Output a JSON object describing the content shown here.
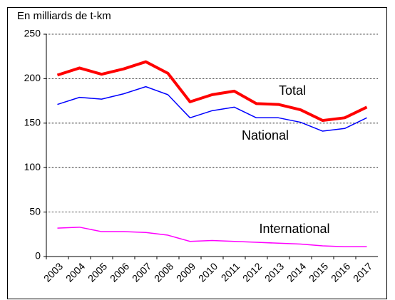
{
  "chart_data": {
    "type": "line",
    "y_axis_label": "En milliards de t-km",
    "categories": [
      "2003",
      "2004",
      "2005",
      "2006",
      "2007",
      "2008",
      "2009",
      "2010",
      "2011",
      "2012",
      "2013",
      "2014",
      "2015",
      "2016",
      "2017"
    ],
    "series": [
      {
        "name": "Total",
        "color": "#ff0000",
        "values": [
          204,
          212,
          205,
          211,
          219,
          206,
          174,
          182,
          186,
          172,
          171,
          165,
          153,
          156,
          168
        ]
      },
      {
        "name": "National",
        "color": "#0000ff",
        "values": [
          171,
          179,
          177,
          183,
          191,
          182,
          156,
          164,
          168,
          156,
          156,
          151,
          141,
          144,
          156
        ]
      },
      {
        "name": "International",
        "color": "#ff00ff",
        "values": [
          32,
          33,
          28,
          28,
          27,
          24,
          17,
          18,
          17,
          16,
          15,
          14,
          12,
          11,
          11
        ]
      }
    ],
    "ylim": [
      0,
      250
    ],
    "yticks": [
      0,
      50,
      100,
      150,
      200,
      250
    ],
    "grid": true
  }
}
